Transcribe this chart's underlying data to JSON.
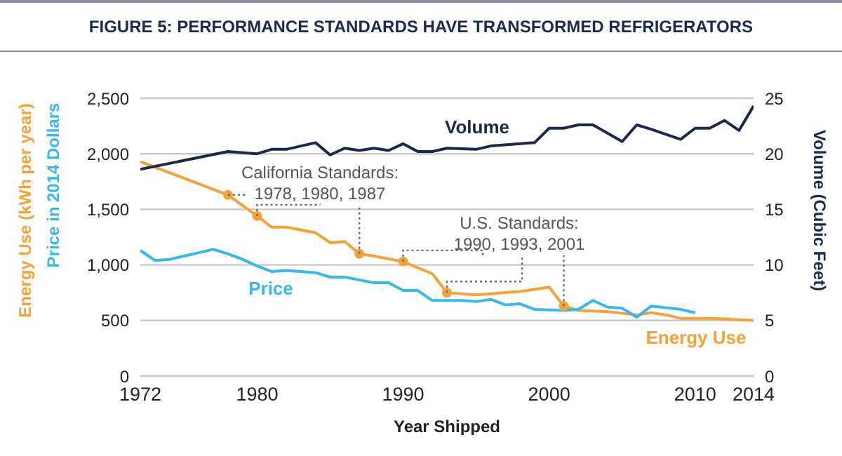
{
  "chart_data": {
    "type": "line",
    "title": "FIGURE 5: PERFORMANCE STANDARDS HAVE TRANSFORMED REFRIGERATORS",
    "xlabel": "Year Shipped",
    "ylabel": "Energy Use (kWh per year)",
    "y2label": "Volume (Cubic Feet)",
    "annotations": [
      {
        "text": "California Standards:\n1978, 1980, 1987",
        "x": 1980,
        "y": 1440
      },
      {
        "text": "U.S. Standards:\n1990, 1993, 2001",
        "x": 1993,
        "y": 750
      },
      "Price in 2014 Dollars"
    ],
    "xlim": [
      1972,
      2014
    ],
    "xticks": [
      1972,
      1980,
      1990,
      2000,
      2010,
      2014
    ],
    "ylim": [
      0,
      2500
    ],
    "yticks": [
      0,
      500,
      {
        "value": 1000,
        "label": "1,000"
      },
      {
        "value": 1500,
        "label": "1,500"
      },
      {
        "value": 2000,
        "label": "2,000"
      },
      {
        "value": 2500,
        "label": "2,500"
      }
    ],
    "y2lim": [
      0,
      25
    ],
    "y2ticks": [
      0,
      5,
      10,
      15,
      20,
      25
    ],
    "grid": "y",
    "legend": false,
    "series": [
      {
        "name": "Energy Use",
        "color": "#f5a23a",
        "x": [
          1972,
          1978,
          1980,
          1981,
          1982,
          1984,
          1985,
          1986,
          1987,
          1988,
          1990,
          1992,
          1993,
          1995,
          1998,
          2000,
          2001,
          2002,
          2004,
          2006,
          2007,
          2008,
          2009,
          2011,
          2014
        ],
        "values": [
          1930,
          1630,
          1440,
          1340,
          1340,
          1290,
          1200,
          1210,
          1100,
          1080,
          1030,
          920,
          750,
          730,
          760,
          800,
          630,
          590,
          580,
          550,
          570,
          550,
          520,
          520,
          500
        ]
      },
      {
        "name": "Price",
        "color": "#3bb8ea",
        "x": [
          1972,
          1973,
          1974,
          1975,
          1977,
          1978,
          1979,
          1980,
          1981,
          1982,
          1984,
          1985,
          1986,
          1988,
          1989,
          1990,
          1991,
          1992,
          1994,
          1995,
          1996,
          1997,
          1998,
          1999,
          2001,
          2002,
          2003,
          2004,
          2005,
          2006,
          2007,
          2009,
          2010
        ],
        "values": [
          1130,
          1040,
          1050,
          1080,
          1140,
          1100,
          1050,
          990,
          940,
          950,
          930,
          890,
          890,
          840,
          840,
          770,
          770,
          680,
          680,
          670,
          690,
          640,
          650,
          600,
          590,
          600,
          680,
          620,
          610,
          530,
          630,
          600,
          570
        ]
      },
      {
        "name": "Volume",
        "color": "#1b2a4a",
        "axis": "y2",
        "x": [
          1972,
          1978,
          1980,
          1981,
          1982,
          1984,
          1985,
          1986,
          1987,
          1988,
          1989,
          1990,
          1991,
          1992,
          1993,
          1995,
          1996,
          1999,
          2000,
          2001,
          2002,
          2003,
          2005,
          2006,
          2007,
          2009,
          2010,
          2011,
          2012,
          2013,
          2014
        ],
        "values": [
          18.6,
          20.2,
          20.0,
          20.4,
          20.4,
          21.0,
          19.9,
          20.5,
          20.3,
          20.5,
          20.3,
          20.9,
          20.2,
          20.2,
          20.5,
          20.4,
          20.7,
          21.0,
          22.3,
          22.3,
          22.6,
          22.6,
          21.1,
          22.6,
          22.2,
          21.3,
          22.3,
          22.3,
          23.0,
          22.1,
          24.3
        ]
      },
      {
        "type": "scatter",
        "color": "#f5a23a",
        "marker": "circle",
        "x": [
          1978,
          1980,
          1987,
          1990,
          1993,
          2001
        ],
        "values": [
          1630,
          1440,
          1100,
          1030,
          750,
          630
        ]
      }
    ]
  }
}
